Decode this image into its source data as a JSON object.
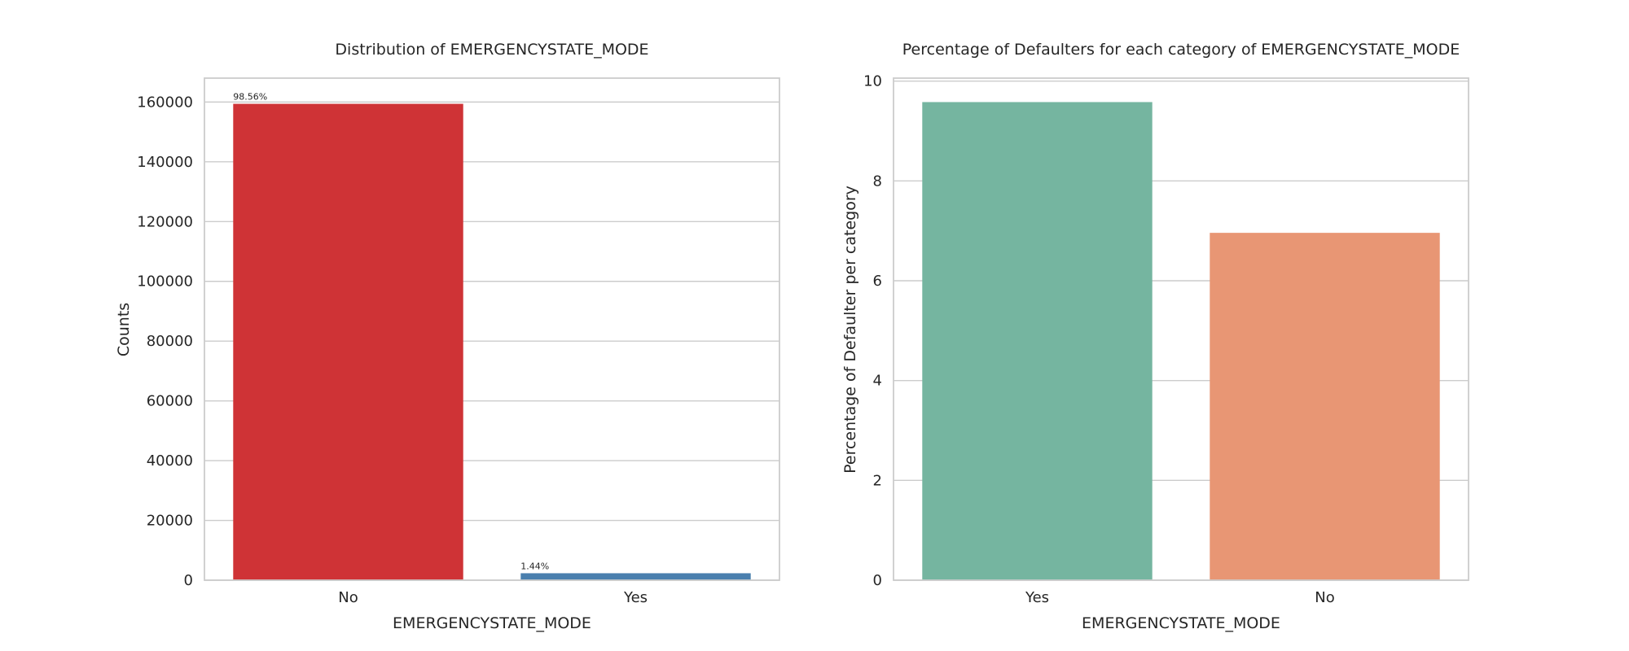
{
  "chart_data": [
    {
      "type": "bar",
      "title": "Distribution of EMERGENCYSTATE_MODE",
      "xlabel": "EMERGENCYSTATE_MODE",
      "ylabel": "Counts",
      "categories": [
        "No",
        "Yes"
      ],
      "values": [
        159400,
        2330
      ],
      "data_labels": [
        "98.56%",
        "1.44%"
      ],
      "colors": [
        "#cf3336",
        "#4a7fae"
      ],
      "ylim": [
        0,
        168000
      ],
      "yticks": [
        0,
        20000,
        40000,
        60000,
        80000,
        100000,
        120000,
        140000,
        160000
      ],
      "ytick_labels": [
        "0",
        "20000",
        "40000",
        "60000",
        "80000",
        "100000",
        "120000",
        "140000",
        "160000"
      ],
      "grid": true
    },
    {
      "type": "bar",
      "title": "Percentage of Defaulters for each category of EMERGENCYSTATE_MODE",
      "xlabel": "EMERGENCYSTATE_MODE",
      "ylabel": "Percentage of Defaulter per category",
      "categories": [
        "Yes",
        "No"
      ],
      "values": [
        9.58,
        6.96
      ],
      "colors": [
        "#75b5a0",
        "#e89674"
      ],
      "ylim": [
        0,
        10.06
      ],
      "yticks": [
        0,
        2,
        4,
        6,
        8,
        10
      ],
      "ytick_labels": [
        "0",
        "2",
        "4",
        "6",
        "8",
        "10"
      ],
      "grid": true
    }
  ]
}
